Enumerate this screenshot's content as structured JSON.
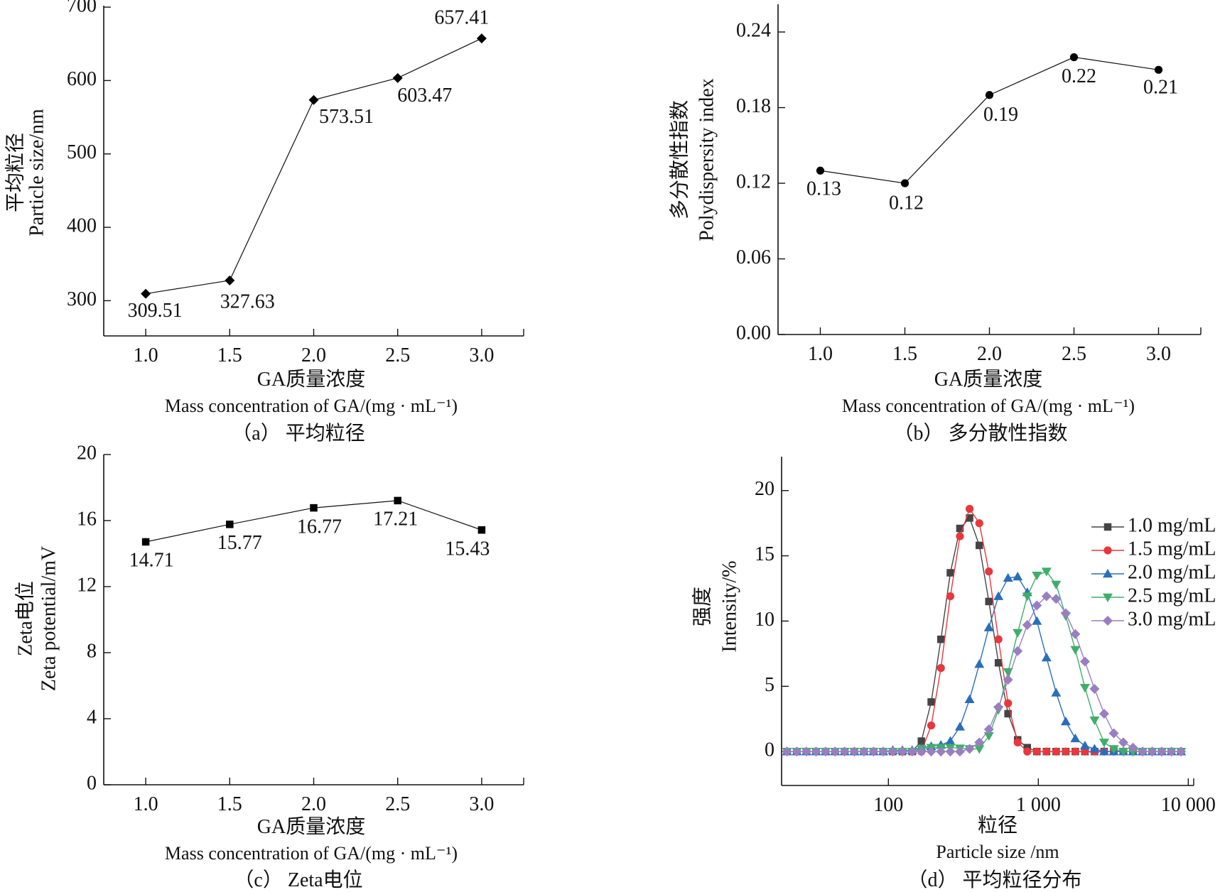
{
  "chart_data": [
    {
      "id": "a",
      "type": "line",
      "caption": "（a） 平均粒径",
      "ylabel_cn": "平均粒径",
      "ylabel": "Particle size/nm",
      "xlabel_cn": "GA质量浓度",
      "xlabel": "Mass concentration of GA/(mg · mL⁻¹)",
      "x": [
        1.0,
        1.5,
        2.0,
        2.5,
        3.0
      ],
      "values": [
        309.51,
        327.63,
        573.51,
        603.47,
        657.41
      ],
      "data_labels": [
        "309.51",
        "327.63",
        "573.51",
        "603.47",
        "657.41"
      ],
      "marker": "diamond",
      "xlim": [
        0.75,
        3.25
      ],
      "ylim": [
        252,
        702
      ],
      "xticks": [
        "1.0",
        "1.5",
        "2.0",
        "2.5",
        "3.0"
      ],
      "yticks": [
        "300",
        "400",
        "500",
        "600",
        "700"
      ],
      "grid": false
    },
    {
      "id": "b",
      "type": "line",
      "caption": "（b） 多分散性指数",
      "ylabel_cn": "多分散性指数",
      "ylabel": "Polydispersity index",
      "xlabel_cn": "GA质量浓度",
      "xlabel": "Mass concentration of GA/(mg · mL⁻¹)",
      "x": [
        1.0,
        1.5,
        2.0,
        2.5,
        3.0
      ],
      "values": [
        0.13,
        0.12,
        0.19,
        0.22,
        0.21
      ],
      "data_labels": [
        "0.13",
        "0.12",
        "0.19",
        "0.22",
        "0.21"
      ],
      "marker": "circle",
      "xlim": [
        0.75,
        3.25
      ],
      "ylim": [
        0,
        0.262
      ],
      "xticks": [
        "1.0",
        "1.5",
        "2.0",
        "2.5",
        "3.0"
      ],
      "yticks": [
        "0.00",
        "0.06",
        "0.12",
        "0.18",
        "0.24"
      ],
      "grid": false
    },
    {
      "id": "c",
      "type": "line",
      "caption": "（c） Zeta电位",
      "ylabel_cn": "Zeta电位",
      "ylabel": "Zeta potential/mV",
      "xlabel_cn": "GA质量浓度",
      "xlabel": "Mass concentration of GA/(mg · mL⁻¹)",
      "x": [
        1.0,
        1.5,
        2.0,
        2.5,
        3.0
      ],
      "values": [
        14.71,
        15.77,
        16.77,
        17.21,
        15.43
      ],
      "data_labels": [
        "14.71",
        "15.77",
        "16.77",
        "17.21",
        "15.43"
      ],
      "marker": "square",
      "xlim": [
        0.75,
        3.25
      ],
      "ylim": [
        0,
        20
      ],
      "xticks": [
        "1.0",
        "1.5",
        "2.0",
        "2.5",
        "3.0"
      ],
      "yticks": [
        "0",
        "4",
        "8",
        "12",
        "16",
        "20"
      ],
      "grid": false
    },
    {
      "id": "d",
      "type": "line",
      "caption": "（d） 平均粒径分布",
      "ylabel_cn": "强度",
      "ylabel": "Intensity/%",
      "xlabel_cn": "粒径",
      "xlabel": "Particle size /nm",
      "xscale": "log",
      "xlim": [
        19.4,
        10870
      ],
      "ylim": [
        -2.6,
        22.6
      ],
      "xticks": [
        {
          "value": 100,
          "label": "100"
        },
        {
          "value": 1000,
          "label": "1 000"
        },
        {
          "value": 10000,
          "label": "10 000"
        }
      ],
      "yticks": [
        "0",
        "5",
        "10",
        "15",
        "20"
      ],
      "legend_position": "right",
      "grid": false,
      "x": [
        21.1,
        24.5,
        28.4,
        32.9,
        38.1,
        44.1,
        51.1,
        59.3,
        68.7,
        79.6,
        92.3,
        107,
        124,
        144,
        166,
        193,
        224,
        259,
        300,
        348,
        404,
        468,
        542,
        628,
        728,
        844,
        978,
        1134,
        1314,
        1523,
        1765,
        2046,
        2371,
        2748,
        3185,
        3691,
        4278,
        4958,
        5747,
        6660,
        7719,
        8946
      ],
      "series": [
        {
          "name": "1.0 mg/mL",
          "color": "#444444",
          "marker": "square",
          "values": [
            0,
            0,
            0,
            0,
            0,
            0,
            0,
            0,
            0,
            0,
            0,
            0,
            0,
            0,
            0.8,
            3.8,
            8.6,
            13.7,
            17.1,
            17.9,
            15.8,
            11.5,
            6.8,
            2.9,
            0.9,
            0.3,
            0,
            0,
            0,
            0,
            0,
            0,
            0,
            0,
            0,
            0,
            0,
            0,
            0,
            0,
            0,
            0
          ]
        },
        {
          "name": "1.5 mg/mL",
          "color": "#e8373d",
          "marker": "circle",
          "values": [
            0,
            0,
            0,
            0,
            0,
            0,
            0,
            0,
            0,
            0,
            0,
            0,
            0,
            0,
            0,
            2.0,
            6.4,
            11.9,
            16.5,
            18.6,
            17.5,
            13.8,
            8.6,
            3.7,
            0.7,
            0,
            0,
            0,
            0,
            0,
            0,
            0,
            0,
            0,
            0,
            0,
            0,
            0,
            0,
            0,
            0,
            0
          ]
        },
        {
          "name": "2.0 mg/mL",
          "color": "#2a6ebb",
          "marker": "triangle-up",
          "values": [
            0,
            0,
            0,
            0,
            0,
            0,
            0,
            0,
            0,
            0,
            0,
            0.1,
            0.1,
            0.1,
            0.3,
            0.4,
            0.5,
            0.8,
            1.9,
            4.0,
            6.7,
            9.5,
            11.9,
            13.3,
            13.4,
            12.2,
            10.0,
            7.2,
            4.5,
            2.3,
            1.0,
            0.45,
            0.2,
            0,
            0,
            0,
            0,
            0,
            0,
            0,
            0,
            0
          ]
        },
        {
          "name": "2.5 mg/mL",
          "color": "#3fae6a",
          "marker": "triangle-down",
          "values": [
            0,
            0,
            0,
            0,
            0,
            0,
            0,
            0,
            0,
            0,
            0,
            0,
            0,
            0,
            0.2,
            0.3,
            0.3,
            0.3,
            0.25,
            0.2,
            0.2,
            1.2,
            3.2,
            6.1,
            9.1,
            11.9,
            13.5,
            13.8,
            12.8,
            10.4,
            7.8,
            4.9,
            2.4,
            0.7,
            0.2,
            0,
            0,
            0,
            0,
            0,
            0,
            0
          ]
        },
        {
          "name": "3.0 mg/mL",
          "color": "#9a7fc0",
          "marker": "diamond",
          "values": [
            0,
            0,
            0,
            0,
            0,
            0,
            0,
            0,
            0,
            0,
            0,
            0,
            0,
            0,
            0,
            0,
            0,
            0,
            0,
            0.2,
            0.7,
            1.7,
            3.4,
            5.5,
            7.7,
            9.7,
            11.2,
            11.9,
            11.7,
            10.6,
            9.0,
            6.9,
            4.8,
            2.9,
            1.4,
            0.7,
            0.3,
            0,
            0,
            0,
            0,
            0
          ]
        }
      ]
    }
  ]
}
